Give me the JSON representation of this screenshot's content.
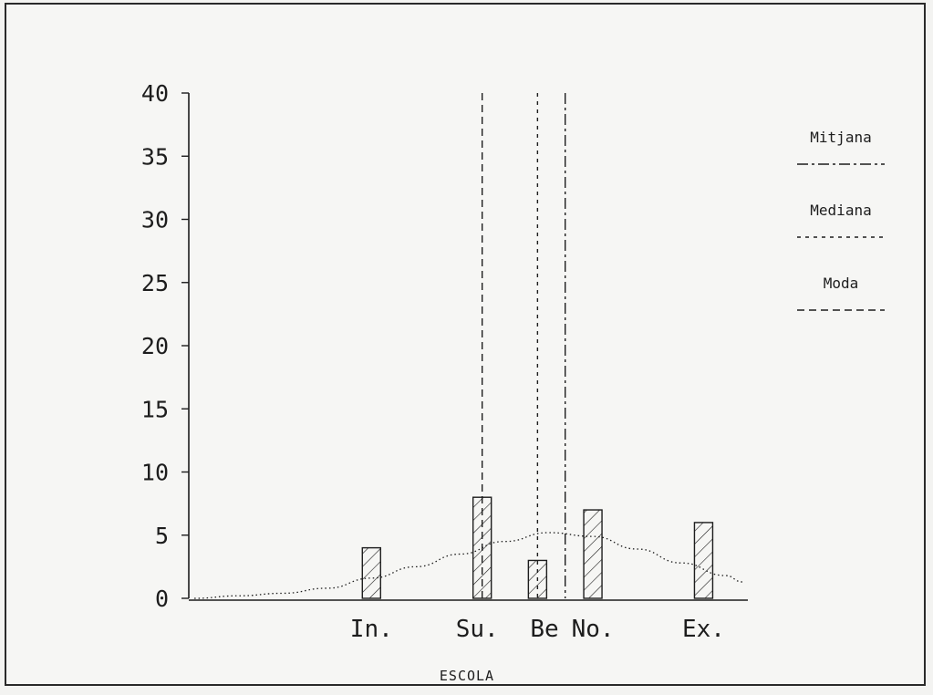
{
  "chart_data": {
    "type": "bar",
    "categories": [
      "In.",
      "Su.",
      "Be",
      "No.",
      "Ex."
    ],
    "values": [
      4,
      8,
      3,
      7,
      6
    ],
    "xlabel": "ESCOLA",
    "ylabel": "",
    "ylim": [
      0,
      40
    ],
    "yticks": [
      0,
      5,
      10,
      15,
      20,
      25,
      30,
      35,
      40
    ],
    "x_positions": [
      1,
      2,
      2.5,
      3,
      4
    ],
    "xlim": [
      -0.65,
      4.4
    ],
    "bar_fill": "diagonal-hatch",
    "reference_lines": [
      {
        "name": "Mitjana",
        "x": 2.75,
        "style": "dash-dot"
      },
      {
        "name": "Mediana",
        "x": 2.5,
        "style": "dotted"
      },
      {
        "name": "Moda",
        "x": 2,
        "style": "dashed"
      }
    ],
    "curve": {
      "style": "dotted",
      "x": [
        -0.6,
        -0.2,
        0.2,
        0.6,
        1.0,
        1.4,
        1.8,
        2.2,
        2.6,
        3.0,
        3.4,
        3.8,
        4.2,
        4.35
      ],
      "y": [
        0,
        0.2,
        0.4,
        0.8,
        1.6,
        2.5,
        3.5,
        4.5,
        5.2,
        4.9,
        3.9,
        2.8,
        1.8,
        1.3
      ]
    },
    "legend": {
      "position": "right",
      "entries": [
        "Mitjana",
        "Mediana",
        "Moda"
      ]
    }
  },
  "colors": {
    "ink": "#1d1d1d",
    "background": "#f6f6f4"
  }
}
